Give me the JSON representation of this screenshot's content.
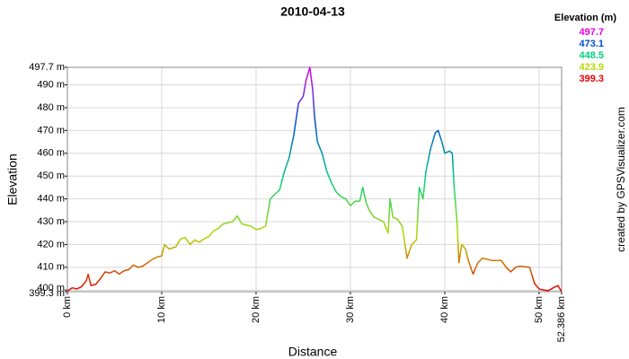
{
  "chart_data": {
    "type": "line",
    "title": "2010-04-13",
    "x_label": "Distance",
    "y_label": "Elevation",
    "credit": "created by GPSVisualizer.com",
    "x": [
      0,
      0.5,
      1,
      1.5,
      2,
      2.2,
      2.5,
      3,
      3.5,
      4,
      4.5,
      5,
      5.5,
      6,
      6.5,
      7,
      7.5,
      8,
      8.5,
      9,
      9.5,
      10,
      10.3,
      10.8,
      11.5,
      12,
      12.5,
      13,
      13.5,
      14,
      14.5,
      15,
      15.5,
      16,
      16.5,
      17,
      17.5,
      18,
      18.5,
      19,
      19.5,
      20,
      20.5,
      21,
      21.3,
      21.5,
      22,
      22.5,
      23,
      23.5,
      24,
      24.5,
      25,
      25.3,
      25.7,
      26,
      26.2,
      26.5,
      27,
      27.5,
      28,
      28.5,
      29,
      29.5,
      30,
      30.5,
      31,
      31.3,
      31.7,
      32,
      32.5,
      33,
      33.5,
      34,
      34.2,
      34.5,
      35,
      35.5,
      36,
      36.5,
      37,
      37.3,
      37.7,
      38,
      38.5,
      39,
      39.3,
      39.7,
      40,
      40.5,
      40.8,
      41,
      41.3,
      41.5,
      41.8,
      42.2,
      42.5,
      43,
      43.5,
      44,
      45,
      46,
      46.5,
      47,
      47.5,
      48,
      49,
      49.5,
      50,
      50.5,
      51,
      51.5,
      52,
      52.386
    ],
    "values": [
      399.5,
      401,
      400.5,
      401.5,
      404,
      407,
      402,
      402.5,
      405,
      408,
      407.5,
      408.5,
      407,
      408.5,
      409,
      411,
      410,
      410.5,
      412,
      413.5,
      414.5,
      415,
      420,
      418,
      419,
      422.5,
      423,
      420,
      422,
      421,
      422.5,
      423.5,
      426,
      427,
      429,
      429.5,
      430,
      432.5,
      429,
      428.5,
      428,
      426.5,
      427,
      428,
      435,
      440,
      442,
      444,
      452,
      458,
      468,
      482,
      485,
      492,
      497.7,
      488,
      476,
      465,
      460,
      452,
      447,
      443,
      441,
      440,
      437,
      439,
      439,
      445,
      438,
      435,
      432,
      431,
      430,
      425,
      440,
      432,
      431,
      428,
      414,
      420,
      422,
      445,
      440,
      452,
      462,
      469,
      470,
      465,
      460,
      461,
      460,
      445,
      430,
      412,
      420,
      418,
      413,
      407,
      412,
      414,
      413,
      413,
      410,
      408,
      410,
      410.5,
      410,
      403,
      400.5,
      400,
      399.8,
      401,
      402,
      399.3
    ],
    "xlim": [
      0,
      52.386
    ],
    "xticks": [
      {
        "value": 0,
        "label": "0 km"
      },
      {
        "value": 10,
        "label": "10 km"
      },
      {
        "value": 20,
        "label": "20 km"
      },
      {
        "value": 30,
        "label": "30 km"
      },
      {
        "value": 40,
        "label": "40 km"
      },
      {
        "value": 50,
        "label": "50 km"
      },
      {
        "value": 52.386,
        "label": "52.386 km"
      }
    ],
    "ylim": [
      399.3,
      497.7
    ],
    "yticks": [
      {
        "value": 399.3,
        "label": "399.3 m"
      },
      {
        "value": 400,
        "label": "400 m"
      },
      {
        "value": 410,
        "label": "410 m"
      },
      {
        "value": 420,
        "label": "420 m"
      },
      {
        "value": 430,
        "label": "430 m"
      },
      {
        "value": 440,
        "label": "440 m"
      },
      {
        "value": 450,
        "label": "450 m"
      },
      {
        "value": 460,
        "label": "460 m"
      },
      {
        "value": 470,
        "label": "470 m"
      },
      {
        "value": 480,
        "label": "480 m"
      },
      {
        "value": 490,
        "label": "490 m"
      },
      {
        "value": 497.7,
        "label": "497.7 m"
      }
    ],
    "grid": true,
    "color_scale": {
      "title": "Elevation (m)",
      "values": [
        497.7,
        473.1,
        448.5,
        423.9,
        399.3
      ],
      "colors": [
        "#e600e6",
        "#0050d0",
        "#00d080",
        "#b8d800",
        "#e60000"
      ]
    }
  }
}
